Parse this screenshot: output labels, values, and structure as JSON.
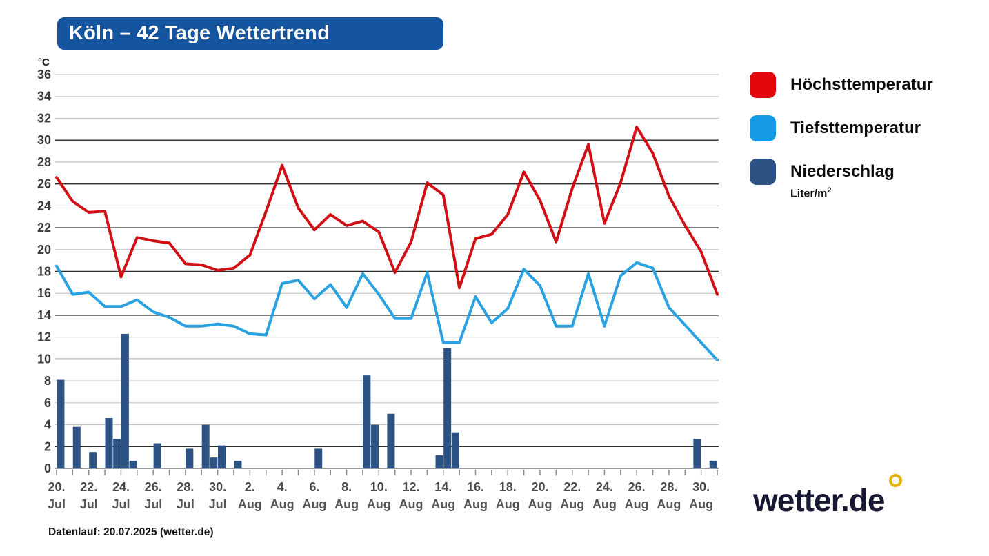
{
  "title": "Köln – 42 Tage Wettertrend",
  "title_bg_color": "#15549e",
  "y_axis": {
    "unit": "°C",
    "min": 0,
    "max": 36,
    "step": 2,
    "dark_lines": [
      2,
      10,
      14,
      18,
      22,
      26,
      30
    ]
  },
  "legend": [
    {
      "label": "Höchsttemperatur",
      "color": "#e2070c"
    },
    {
      "label": "Tiefsttemperatur",
      "color": "#169be6"
    },
    {
      "label": "Niederschlag",
      "color": "#2d5284",
      "sublabel": "Liter/m",
      "sublabel_sup": "2"
    }
  ],
  "footer": "Datenlauf: 20.07.2025 (wetter.de)",
  "logo": {
    "text": "wetter.de"
  },
  "chart_data": {
    "type": "line+bar",
    "n_days": 42,
    "x_tick_labels": [
      {
        "index": 0,
        "day": "20.",
        "month": "Jul"
      },
      {
        "index": 2,
        "day": "22.",
        "month": "Jul"
      },
      {
        "index": 4,
        "day": "24.",
        "month": "Jul"
      },
      {
        "index": 6,
        "day": "26.",
        "month": "Jul"
      },
      {
        "index": 8,
        "day": "28.",
        "month": "Jul"
      },
      {
        "index": 10,
        "day": "30.",
        "month": "Jul"
      },
      {
        "index": 12,
        "day": "2.",
        "month": "Aug"
      },
      {
        "index": 14,
        "day": "4.",
        "month": "Aug"
      },
      {
        "index": 16,
        "day": "6.",
        "month": "Aug"
      },
      {
        "index": 18,
        "day": "8.",
        "month": "Aug"
      },
      {
        "index": 20,
        "day": "10.",
        "month": "Aug"
      },
      {
        "index": 22,
        "day": "12.",
        "month": "Aug"
      },
      {
        "index": 24,
        "day": "14.",
        "month": "Aug"
      },
      {
        "index": 26,
        "day": "16.",
        "month": "Aug"
      },
      {
        "index": 28,
        "day": "18.",
        "month": "Aug"
      },
      {
        "index": 30,
        "day": "20.",
        "month": "Aug"
      },
      {
        "index": 32,
        "day": "22.",
        "month": "Aug"
      },
      {
        "index": 34,
        "day": "24.",
        "month": "Aug"
      },
      {
        "index": 36,
        "day": "26.",
        "month": "Aug"
      },
      {
        "index": 38,
        "day": "28.",
        "month": "Aug"
      },
      {
        "index": 40,
        "day": "30.",
        "month": "Aug"
      }
    ],
    "series": [
      {
        "name": "Höchsttemperatur",
        "type": "line",
        "color": "#d01014",
        "values": [
          26.6,
          24.4,
          23.4,
          23.5,
          17.5,
          21.1,
          20.8,
          20.6,
          18.7,
          18.6,
          18.1,
          18.3,
          19.5,
          23.5,
          27.7,
          23.8,
          21.8,
          23.2,
          22.2,
          22.6,
          21.6,
          17.9,
          20.7,
          26.1,
          25.0,
          16.5,
          21.0,
          21.4,
          23.2,
          27.1,
          24.5,
          20.7,
          25.6,
          29.6,
          22.4,
          26.1,
          31.2,
          28.8,
          24.9,
          22.2,
          19.8,
          15.9
        ]
      },
      {
        "name": "Tiefsttemperatur",
        "type": "line",
        "color": "#2aa2e2",
        "values": [
          18.5,
          15.9,
          16.1,
          14.8,
          14.8,
          15.4,
          14.3,
          13.8,
          13.0,
          13.0,
          13.2,
          13.0,
          12.3,
          12.2,
          16.9,
          17.2,
          15.5,
          16.8,
          14.7,
          17.8,
          15.9,
          13.7,
          13.7,
          17.9,
          11.5,
          11.5,
          15.7,
          13.3,
          14.6,
          18.2,
          16.7,
          13.0,
          13.0,
          17.8,
          13.0,
          17.6,
          18.8,
          18.3,
          14.7,
          13.1,
          11.5,
          9.9
        ]
      },
      {
        "name": "Niederschlag",
        "type": "bar",
        "unit": "Liter/m²",
        "color": "#2d5284",
        "halfday_slots": {
          "0": 8.1,
          "2": 3.8,
          "4": 1.5,
          "6": 4.6,
          "7": 2.7,
          "8": 12.3,
          "9": 0.7,
          "12": 2.3,
          "16": 1.8,
          "18": 4.0,
          "19": 1.0,
          "20": 2.1,
          "22": 0.7,
          "32": 1.8,
          "38": 8.5,
          "39": 4.0,
          "41": 5.0,
          "47": 1.2,
          "48": 11.0,
          "49": 3.3,
          "79": 2.7,
          "81": 0.7
        }
      }
    ],
    "ylim": [
      0,
      36
    ],
    "grid": true,
    "legend_position": "right"
  }
}
